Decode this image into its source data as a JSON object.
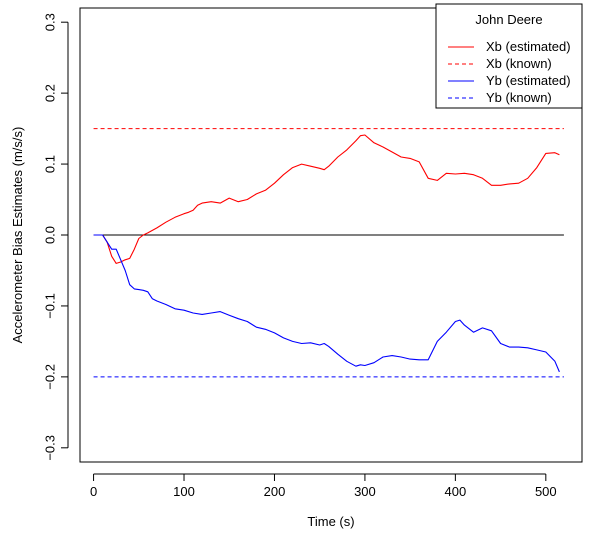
{
  "chart_data": {
    "type": "line",
    "xlabel": "Time (s)",
    "ylabel": "Accelerometer Bias Estimates (m/s/s)",
    "xlim": [
      -15,
      540
    ],
    "ylim": [
      -0.32,
      0.32
    ],
    "xticks": [
      0,
      100,
      200,
      300,
      400,
      500
    ],
    "yticks": [
      -0.3,
      -0.2,
      -0.1,
      0.0,
      0.1,
      0.2,
      0.3
    ],
    "grid": false,
    "legend": {
      "title": "John Deere",
      "placement": "top-right",
      "entries": [
        {
          "label": "Xb (estimated)",
          "color": "#ff0000",
          "dash": "solid"
        },
        {
          "label": "Xb (known)",
          "color": "#ff0000",
          "dash": "dashed"
        },
        {
          "label": "Yb (estimated)",
          "color": "#0000ff",
          "dash": "solid"
        },
        {
          "label": "Yb (known)",
          "color": "#0000ff",
          "dash": "dashed"
        }
      ]
    },
    "reference_lines": [
      {
        "y": 0.0,
        "x_range": [
          0,
          520
        ],
        "color": "#000000",
        "dash": "solid"
      },
      {
        "y": 0.15,
        "x_range": [
          0,
          520
        ],
        "color": "#ff0000",
        "dash": "dashed"
      },
      {
        "y": -0.2,
        "x_range": [
          0,
          520
        ],
        "color": "#0000ff",
        "dash": "dashed"
      }
    ],
    "series": [
      {
        "name": "Xb (estimated)",
        "color": "#ff0000",
        "x": [
          0,
          10,
          15,
          20,
          25,
          30,
          35,
          40,
          45,
          50,
          55,
          60,
          70,
          80,
          90,
          100,
          105,
          110,
          115,
          120,
          130,
          140,
          150,
          160,
          170,
          180,
          190,
          200,
          210,
          220,
          230,
          240,
          250,
          255,
          260,
          270,
          280,
          290,
          295,
          300,
          310,
          320,
          330,
          340,
          350,
          360,
          370,
          380,
          390,
          400,
          410,
          420,
          430,
          440,
          450,
          460,
          470,
          480,
          490,
          500,
          510,
          515
        ],
        "y": [
          0.0,
          0.0,
          -0.01,
          -0.03,
          -0.04,
          -0.038,
          -0.035,
          -0.033,
          -0.02,
          -0.005,
          0.0,
          0.003,
          0.01,
          0.018,
          0.025,
          0.03,
          0.032,
          0.035,
          0.042,
          0.045,
          0.047,
          0.045,
          0.052,
          0.047,
          0.05,
          0.058,
          0.063,
          0.073,
          0.085,
          0.095,
          0.1,
          0.097,
          0.094,
          0.092,
          0.097,
          0.11,
          0.12,
          0.133,
          0.14,
          0.141,
          0.13,
          0.124,
          0.117,
          0.11,
          0.108,
          0.103,
          0.08,
          0.077,
          0.087,
          0.086,
          0.087,
          0.085,
          0.08,
          0.07,
          0.07,
          0.072,
          0.073,
          0.08,
          0.095,
          0.115,
          0.116,
          0.113
        ]
      },
      {
        "name": "Yb (estimated)",
        "color": "#0000ff",
        "x": [
          0,
          10,
          15,
          20,
          25,
          30,
          35,
          40,
          45,
          50,
          55,
          60,
          65,
          70,
          80,
          90,
          100,
          110,
          120,
          130,
          140,
          150,
          160,
          170,
          180,
          190,
          200,
          210,
          220,
          230,
          240,
          250,
          255,
          260,
          270,
          280,
          290,
          295,
          300,
          310,
          320,
          330,
          340,
          350,
          360,
          370,
          380,
          390,
          400,
          405,
          410,
          420,
          430,
          440,
          450,
          460,
          470,
          480,
          490,
          500,
          510,
          515
        ],
        "y": [
          0.0,
          0.0,
          -0.01,
          -0.02,
          -0.02,
          -0.035,
          -0.05,
          -0.07,
          -0.076,
          -0.077,
          -0.078,
          -0.08,
          -0.09,
          -0.093,
          -0.098,
          -0.104,
          -0.106,
          -0.11,
          -0.112,
          -0.11,
          -0.108,
          -0.113,
          -0.118,
          -0.122,
          -0.13,
          -0.133,
          -0.138,
          -0.145,
          -0.15,
          -0.153,
          -0.152,
          -0.155,
          -0.153,
          -0.157,
          -0.168,
          -0.178,
          -0.185,
          -0.183,
          -0.184,
          -0.18,
          -0.172,
          -0.17,
          -0.172,
          -0.175,
          -0.176,
          -0.176,
          -0.15,
          -0.137,
          -0.122,
          -0.12,
          -0.127,
          -0.137,
          -0.131,
          -0.135,
          -0.153,
          -0.158,
          -0.158,
          -0.159,
          -0.162,
          -0.165,
          -0.178,
          -0.193
        ]
      }
    ]
  }
}
